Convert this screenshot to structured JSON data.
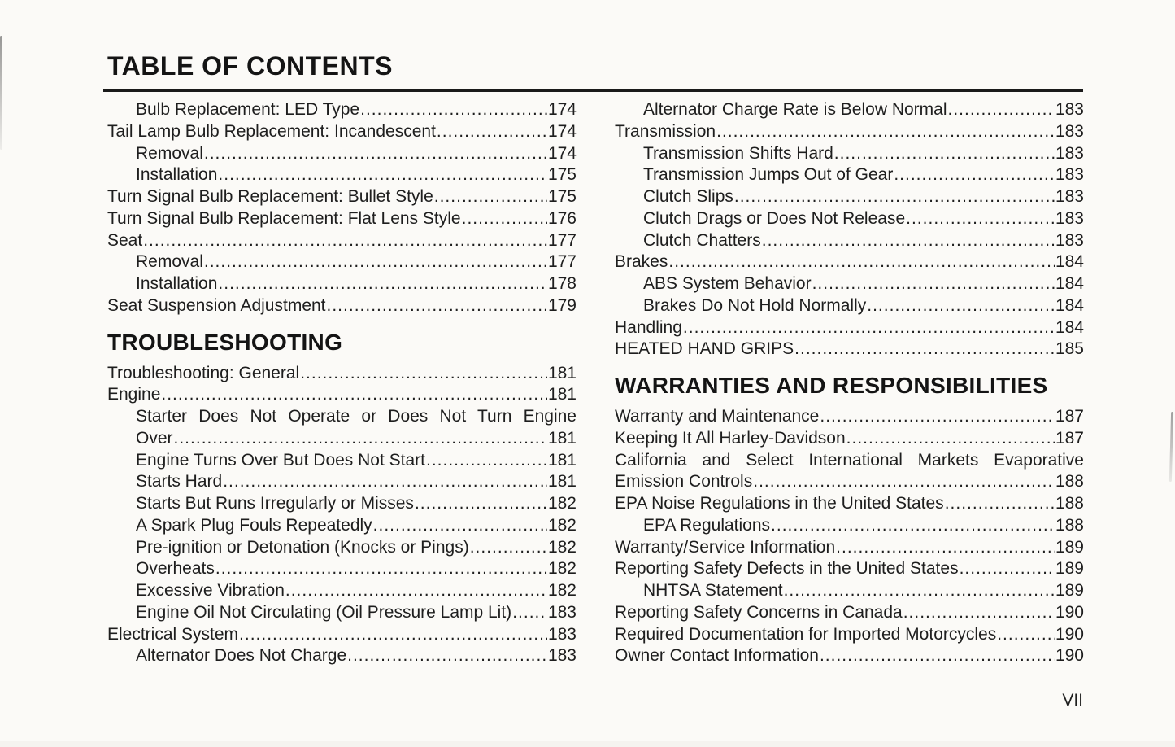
{
  "document": {
    "title": "TABLE OF CONTENTS",
    "corner_page_number": "VII"
  },
  "colors": {
    "page_background": "#fbfaf7",
    "text": "#1e1e1e",
    "rule": "#1a1a1a"
  },
  "toc": {
    "left_column": {
      "sections": [
        {
          "heading": "",
          "entries": [
            {
              "label": "Bulb Replacement: LED Type",
              "page": "174",
              "indent": 1
            },
            {
              "label": "Tail Lamp Bulb Replacement: Incandescent",
              "page": "174",
              "indent": 0
            },
            {
              "label": "Removal",
              "page": "174",
              "indent": 1
            },
            {
              "label": "Installation",
              "page": "175",
              "indent": 1
            },
            {
              "label": "Turn Signal Bulb Replacement: Bullet Style",
              "page": "175",
              "indent": 0
            },
            {
              "label": "Turn Signal Bulb Replacement: Flat Lens Style",
              "page": "176",
              "indent": 0
            },
            {
              "label": "Seat",
              "page": "177",
              "indent": 0
            },
            {
              "label": "Removal",
              "page": "177",
              "indent": 1
            },
            {
              "label": "Installation",
              "page": "178",
              "indent": 1
            },
            {
              "label": "Seat Suspension Adjustment",
              "page": "179",
              "indent": 0
            }
          ]
        },
        {
          "heading": "TROUBLESHOOTING",
          "entries": [
            {
              "label": "Troubleshooting: General",
              "page": "181",
              "indent": 0
            },
            {
              "label": "Engine",
              "page": "181",
              "indent": 0
            },
            {
              "label": "Starter Does Not Operate or Does Not Turn Engine",
              "label2": "Over",
              "page": "181",
              "indent": 1
            },
            {
              "label": "Engine Turns Over But Does Not Start",
              "page": "181",
              "indent": 1
            },
            {
              "label": "Starts Hard",
              "page": "181",
              "indent": 1
            },
            {
              "label": "Starts But Runs Irregularly or Misses",
              "page": "182",
              "indent": 1
            },
            {
              "label": "A Spark Plug Fouls Repeatedly",
              "page": "182",
              "indent": 1
            },
            {
              "label": "Pre-ignition or Detonation (Knocks or Pings)",
              "page": "182",
              "indent": 1
            },
            {
              "label": "Overheats",
              "page": "182",
              "indent": 1
            },
            {
              "label": "Excessive Vibration",
              "page": "182",
              "indent": 1
            },
            {
              "label": "Engine Oil Not Circulating (Oil Pressure Lamp Lit)",
              "page": "183",
              "indent": 1
            },
            {
              "label": "Electrical System",
              "page": "183",
              "indent": 0
            },
            {
              "label": "Alternator Does Not Charge",
              "page": "183",
              "indent": 1
            }
          ]
        }
      ]
    },
    "right_column": {
      "sections": [
        {
          "heading": "",
          "entries": [
            {
              "label": "Alternator Charge Rate is Below Normal",
              "page": "183",
              "indent": 1
            },
            {
              "label": "Transmission",
              "page": "183",
              "indent": 0
            },
            {
              "label": "Transmission Shifts Hard",
              "page": "183",
              "indent": 1
            },
            {
              "label": "Transmission Jumps Out of Gear",
              "page": "183",
              "indent": 1
            },
            {
              "label": "Clutch Slips",
              "page": "183",
              "indent": 1
            },
            {
              "label": "Clutch Drags or Does Not Release",
              "page": "183",
              "indent": 1
            },
            {
              "label": "Clutch Chatters",
              "page": "183",
              "indent": 1
            },
            {
              "label": "Brakes",
              "page": "184",
              "indent": 0
            },
            {
              "label": "ABS System Behavior",
              "page": "184",
              "indent": 1
            },
            {
              "label": "Brakes Do Not Hold Normally",
              "page": "184",
              "indent": 1
            },
            {
              "label": "Handling",
              "page": "184",
              "indent": 0
            },
            {
              "label": "HEATED HAND GRIPS",
              "page": "185",
              "indent": 0
            }
          ]
        },
        {
          "heading": "WARRANTIES AND RESPONSIBILITIES",
          "entries": [
            {
              "label": "Warranty and Maintenance",
              "page": "187",
              "indent": 0
            },
            {
              "label": "Keeping It All Harley-Davidson",
              "page": "187",
              "indent": 0
            },
            {
              "label": "California and Select International Markets Evaporative",
              "label2": "Emission Controls",
              "page": "188",
              "indent": 0
            },
            {
              "label": "EPA Noise Regulations in the United States",
              "page": "188",
              "indent": 0
            },
            {
              "label": "EPA Regulations",
              "page": "188",
              "indent": 1
            },
            {
              "label": "Warranty/Service Information",
              "page": "189",
              "indent": 0
            },
            {
              "label": "Reporting Safety Defects in the United States",
              "page": "189",
              "indent": 0
            },
            {
              "label": "NHTSA Statement",
              "page": "189",
              "indent": 1
            },
            {
              "label": "Reporting Safety Concerns in Canada",
              "page": "190",
              "indent": 0
            },
            {
              "label": "Required Documentation for Imported Motorcycles",
              "page": "190",
              "indent": 0
            },
            {
              "label": "Owner Contact Information",
              "page": "190",
              "indent": 0
            }
          ]
        }
      ]
    }
  }
}
